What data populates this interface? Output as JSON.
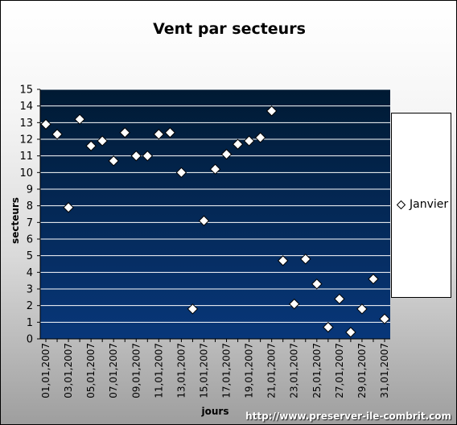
{
  "title": "Vent par secteurs",
  "watermark": "http://www.preserver-ile-combrit.com",
  "colors": {
    "plot_top": "#001a33",
    "plot_bottom": "#08377a",
    "gridline": "#ffffff",
    "marker_fill": "#ffffff",
    "marker_stroke": "#000000"
  },
  "chart_data": {
    "type": "scatter",
    "title": "Vent par secteurs",
    "xlabel": "jours",
    "ylabel": "secteurs",
    "ylim": [
      0,
      15
    ],
    "yticks": [
      0,
      1,
      2,
      3,
      4,
      5,
      6,
      7,
      8,
      9,
      10,
      11,
      12,
      13,
      14,
      15
    ],
    "grid": true,
    "legend_position": "right",
    "marker": "diamond",
    "x_tick_labels": [
      "01,01,2007",
      "03,01,2007",
      "05,01,2007",
      "07,01,2007",
      "09,01,2007",
      "11,01,2007",
      "13,01,2007",
      "15,01,2007",
      "17,01,2007",
      "19,01,2007",
      "21,01,2007",
      "23,01,2007",
      "25,01,2007",
      "27,01,2007",
      "29,01,2007",
      "31,01,2007"
    ],
    "x": [
      "01,01,2007",
      "02,01,2007",
      "03,01,2007",
      "04,01,2007",
      "05,01,2007",
      "06,01,2007",
      "07,01,2007",
      "08,01,2007",
      "09,01,2007",
      "10,01,2007",
      "11,01,2007",
      "12,01,2007",
      "13,01,2007",
      "14,01,2007",
      "15,01,2007",
      "16,01,2007",
      "17,01,2007",
      "18,01,2007",
      "19,01,2007",
      "20,01,2007",
      "21,01,2007",
      "22,01,2007",
      "23,01,2007",
      "24,01,2007",
      "25,01,2007",
      "26,01,2007",
      "27,01,2007",
      "28,01,2007",
      "29,01,2007",
      "30,01,2007",
      "31,01,2007"
    ],
    "series": [
      {
        "name": "Janvier",
        "values": [
          12.9,
          12.3,
          7.9,
          13.2,
          11.6,
          11.9,
          10.7,
          12.4,
          11.0,
          11.0,
          12.3,
          12.4,
          10.0,
          1.8,
          7.1,
          10.2,
          11.1,
          11.7,
          11.9,
          12.1,
          13.7,
          4.7,
          2.1,
          4.8,
          3.3,
          0.7,
          2.4,
          0.4,
          1.8,
          3.6,
          1.2
        ]
      }
    ]
  }
}
